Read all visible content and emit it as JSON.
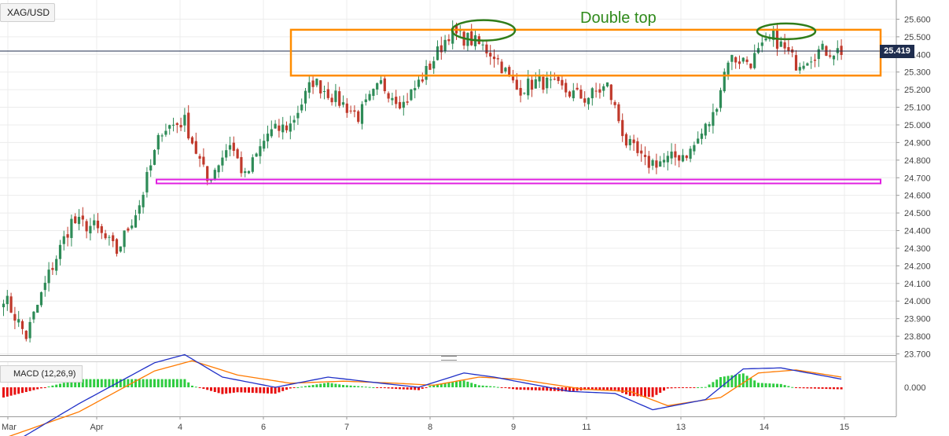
{
  "symbol": "XAG/USD",
  "macd_label": "MACD (12,26,9)",
  "annotation": "Double top",
  "last_price": "25.419",
  "colors": {
    "up": "#2e8b57",
    "down": "#c0392b",
    "resistance_box": "#ff8c00",
    "support_box": "#e020e0",
    "double_top_ellipse": "#2f7d1a",
    "price_line": "#1f2d4e",
    "macd_line": "#2030c8",
    "signal_line": "#ff7a00",
    "hist_pos": "#2ecc40",
    "hist_neg": "#e81010"
  },
  "chart_data": [
    {
      "type": "candlestick",
      "title": "",
      "x_tick_labels": [
        "Mar",
        "Apr",
        "4",
        "6",
        "7",
        "8",
        "9",
        "11",
        "13",
        "14",
        "15"
      ],
      "y_tick_labels": [
        "23.700",
        "23.800",
        "23.900",
        "24.000",
        "24.100",
        "24.200",
        "24.300",
        "24.400",
        "24.500",
        "24.600",
        "24.700",
        "24.800",
        "24.900",
        "25.000",
        "25.100",
        "25.200",
        "25.300",
        "25.400",
        "25.500",
        "25.600"
      ],
      "ylim": [
        23.7,
        25.65
      ],
      "last_price": 25.419,
      "key_points": [
        {
          "x": 0,
          "y": 24.03
        },
        {
          "x": 6,
          "y": 23.8
        },
        {
          "x": 12,
          "y": 24.15
        },
        {
          "x": 18,
          "y": 24.45
        },
        {
          "x": 24,
          "y": 24.42
        },
        {
          "x": 30,
          "y": 24.28
        },
        {
          "x": 36,
          "y": 24.55
        },
        {
          "x": 42,
          "y": 24.98
        },
        {
          "x": 48,
          "y": 25.02
        },
        {
          "x": 54,
          "y": 24.68
        },
        {
          "x": 60,
          "y": 24.9
        },
        {
          "x": 64,
          "y": 24.7
        },
        {
          "x": 70,
          "y": 24.95
        },
        {
          "x": 76,
          "y": 25.0
        },
        {
          "x": 82,
          "y": 25.25
        },
        {
          "x": 88,
          "y": 25.15
        },
        {
          "x": 94,
          "y": 25.05
        },
        {
          "x": 100,
          "y": 25.23
        },
        {
          "x": 106,
          "y": 25.12
        },
        {
          "x": 112,
          "y": 25.3
        },
        {
          "x": 118,
          "y": 25.52
        },
        {
          "x": 124,
          "y": 25.48
        },
        {
          "x": 130,
          "y": 25.4
        },
        {
          "x": 136,
          "y": 25.2
        },
        {
          "x": 142,
          "y": 25.25
        },
        {
          "x": 148,
          "y": 25.2
        },
        {
          "x": 154,
          "y": 25.15
        },
        {
          "x": 160,
          "y": 25.22
        },
        {
          "x": 165,
          "y": 24.9
        },
        {
          "x": 170,
          "y": 24.78
        },
        {
          "x": 176,
          "y": 24.8
        },
        {
          "x": 182,
          "y": 24.85
        },
        {
          "x": 188,
          "y": 25.05
        },
        {
          "x": 192,
          "y": 25.38
        },
        {
          "x": 198,
          "y": 25.36
        },
        {
          "x": 204,
          "y": 25.5
        },
        {
          "x": 210,
          "y": 25.35
        },
        {
          "x": 216,
          "y": 25.42
        },
        {
          "x": 222,
          "y": 25.42
        }
      ],
      "resistance_zone": [
        25.28,
        25.54
      ],
      "support_zone": [
        24.67,
        24.69
      ],
      "double_top_peaks": [
        25.55,
        25.54
      ]
    },
    {
      "type": "macd",
      "title": "MACD (12,26,9)",
      "y_tick_labels": [
        "0.000"
      ],
      "macd_line": [
        {
          "x": 0,
          "y": -0.3
        },
        {
          "x": 20,
          "y": -0.08
        },
        {
          "x": 40,
          "y": 0.12
        },
        {
          "x": 48,
          "y": 0.16
        },
        {
          "x": 58,
          "y": 0.05
        },
        {
          "x": 72,
          "y": 0.0
        },
        {
          "x": 86,
          "y": 0.05
        },
        {
          "x": 100,
          "y": 0.02
        },
        {
          "x": 110,
          "y": 0.0
        },
        {
          "x": 122,
          "y": 0.07
        },
        {
          "x": 130,
          "y": 0.05
        },
        {
          "x": 150,
          "y": -0.02
        },
        {
          "x": 162,
          "y": -0.03
        },
        {
          "x": 172,
          "y": -0.11
        },
        {
          "x": 186,
          "y": -0.06
        },
        {
          "x": 196,
          "y": 0.09
        },
        {
          "x": 206,
          "y": 0.095
        },
        {
          "x": 222,
          "y": 0.04
        }
      ],
      "signal_line": [
        {
          "x": 0,
          "y": -0.25
        },
        {
          "x": 20,
          "y": -0.12
        },
        {
          "x": 40,
          "y": 0.08
        },
        {
          "x": 50,
          "y": 0.13
        },
        {
          "x": 62,
          "y": 0.06
        },
        {
          "x": 76,
          "y": 0.02
        },
        {
          "x": 90,
          "y": 0.03
        },
        {
          "x": 104,
          "y": 0.02
        },
        {
          "x": 114,
          "y": 0.01
        },
        {
          "x": 126,
          "y": 0.05
        },
        {
          "x": 136,
          "y": 0.04
        },
        {
          "x": 154,
          "y": -0.01
        },
        {
          "x": 166,
          "y": -0.02
        },
        {
          "x": 176,
          "y": -0.09
        },
        {
          "x": 190,
          "y": -0.05
        },
        {
          "x": 200,
          "y": 0.07
        },
        {
          "x": 210,
          "y": 0.085
        },
        {
          "x": 222,
          "y": 0.05
        }
      ]
    }
  ]
}
